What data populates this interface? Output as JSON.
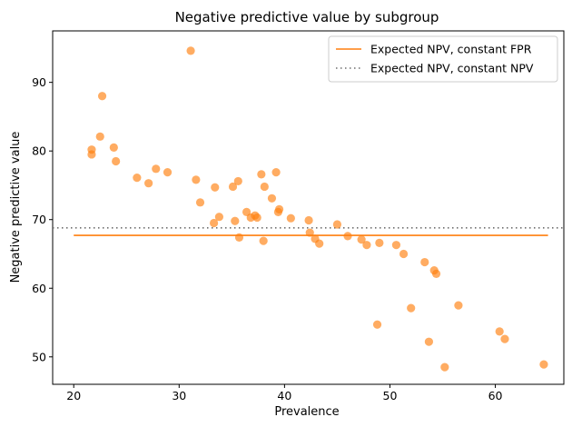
{
  "chart_data": {
    "type": "scatter",
    "title": "Negative predictive value by subgroup",
    "xlabel": "Prevalence",
    "ylabel": "Negative predictive value",
    "xlim": [
      18,
      66.5
    ],
    "ylim": [
      46,
      97.5
    ],
    "xticks": [
      20,
      30,
      40,
      50,
      60
    ],
    "yticks": [
      50,
      60,
      70,
      80,
      90
    ],
    "grid": false,
    "legend_position": "top-right",
    "colors": {
      "points": "#ff7f0e",
      "fpr_line": "#ff7f0e",
      "npv_line": "#6e6e6e"
    },
    "series": [
      {
        "name": "",
        "kind": "points",
        "x": [
          21.7,
          21.7,
          22.5,
          22.7,
          23.8,
          24.0,
          26.0,
          27.1,
          27.8,
          28.9,
          31.1,
          31.6,
          32.0,
          33.3,
          33.4,
          33.8,
          35.1,
          35.3,
          35.6,
          35.7,
          36.4,
          36.8,
          37.2,
          37.4,
          37.8,
          38.0,
          38.1,
          38.8,
          39.2,
          39.4,
          39.5,
          40.6,
          42.3,
          42.4,
          42.9,
          43.3,
          45.0,
          46.0,
          47.3,
          47.8,
          48.8,
          49.0,
          50.6,
          51.3,
          52.0,
          53.3,
          53.7,
          54.2,
          54.4,
          55.2,
          56.5,
          60.4,
          60.9,
          64.6
        ],
        "y": [
          80.2,
          79.5,
          82.1,
          88.0,
          80.5,
          78.5,
          76.1,
          75.3,
          77.4,
          76.9,
          94.6,
          75.8,
          72.5,
          69.5,
          74.7,
          70.4,
          74.8,
          69.8,
          75.6,
          67.4,
          71.1,
          70.3,
          70.6,
          70.3,
          76.6,
          66.9,
          74.8,
          73.1,
          76.9,
          71.1,
          71.5,
          70.2,
          69.9,
          68.1,
          67.2,
          66.5,
          69.3,
          67.6,
          67.1,
          66.3,
          54.7,
          66.6,
          66.3,
          65.0,
          57.1,
          63.8,
          52.2,
          62.6,
          62.1,
          48.5,
          57.5,
          53.7,
          52.6,
          48.9
        ]
      },
      {
        "name": "Expected NPV, constant FPR",
        "kind": "line",
        "style": "solid",
        "x": [
          20,
          65
        ],
        "y": [
          67.7,
          67.7
        ]
      },
      {
        "name": "Expected NPV, constant NPV",
        "kind": "line",
        "style": "dotted",
        "x": [
          18,
          66.5
        ],
        "y": [
          68.8,
          68.8
        ]
      }
    ]
  }
}
